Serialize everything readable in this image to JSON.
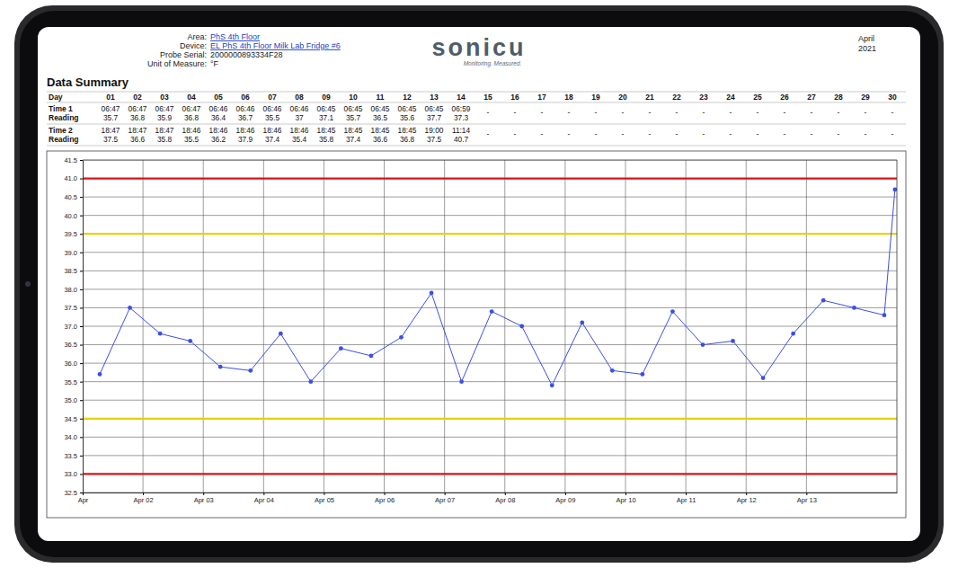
{
  "header": {
    "fields": [
      {
        "label": "Area:",
        "value": "PhS 4th Floor"
      },
      {
        "label": "Device:",
        "value": "EL PhS 4th Floor Milk Lab Fridge #6"
      },
      {
        "label": "Probe Serial:",
        "value": "2000000893334F28"
      },
      {
        "label": "Unit of Measure:",
        "value": "°F"
      }
    ],
    "logo": "sonicu",
    "tagline": "Monitoring. Measured.",
    "month": "April",
    "year": "2021"
  },
  "table": {
    "title": "Data Summary",
    "row_labels": [
      "Day",
      "Time 1 Reading",
      "Time 2 Reading"
    ],
    "days": [
      "01",
      "02",
      "03",
      "04",
      "05",
      "06",
      "07",
      "08",
      "09",
      "10",
      "11",
      "12",
      "13",
      "14",
      "15",
      "16",
      "17",
      "18",
      "19",
      "20",
      "21",
      "22",
      "23",
      "24",
      "25",
      "26",
      "27",
      "28",
      "29",
      "30"
    ],
    "time1": [
      {
        "time": "06:47",
        "reading": 35.7
      },
      {
        "time": "06:47",
        "reading": 36.8
      },
      {
        "time": "06:47",
        "reading": 35.9
      },
      {
        "time": "06:47",
        "reading": 36.8
      },
      {
        "time": "06:46",
        "reading": 36.4
      },
      {
        "time": "06:46",
        "reading": 36.7
      },
      {
        "time": "06:46",
        "reading": 35.5
      },
      {
        "time": "06:46",
        "reading": 37
      },
      {
        "time": "06:45",
        "reading": 37.1
      },
      {
        "time": "06:45",
        "reading": 35.7
      },
      {
        "time": "06:45",
        "reading": 36.5
      },
      {
        "time": "06:45",
        "reading": 35.6
      },
      {
        "time": "06:45",
        "reading": 37.7
      },
      {
        "time": "06:59",
        "reading": 37.3
      },
      "-",
      "-",
      "-",
      "-",
      "-",
      "-",
      "-",
      "-",
      "-",
      "-",
      "-",
      "-",
      "-",
      "-",
      "-",
      "-"
    ],
    "time2": [
      {
        "time": "18:47",
        "reading": 37.5
      },
      {
        "time": "18:47",
        "reading": 36.6
      },
      {
        "time": "18:47",
        "reading": 35.8
      },
      {
        "time": "18:46",
        "reading": 35.5
      },
      {
        "time": "18:46",
        "reading": 36.2
      },
      {
        "time": "18:46",
        "reading": 37.9
      },
      {
        "time": "18:46",
        "reading": 37.4
      },
      {
        "time": "18:46",
        "reading": 35.4
      },
      {
        "time": "18:45",
        "reading": 35.8
      },
      {
        "time": "18:45",
        "reading": 37.4
      },
      {
        "time": "18:45",
        "reading": 36.6
      },
      {
        "time": "18:45",
        "reading": 36.8
      },
      {
        "time": "19:00",
        "reading": 37.5
      },
      {
        "time": "11:14",
        "reading": 40.7
      },
      "-",
      "-",
      "-",
      "-",
      "-",
      "-",
      "-",
      "-",
      "-",
      "-",
      "-",
      "-",
      "-",
      "-",
      "-",
      "-"
    ]
  },
  "chart_data": {
    "type": "line",
    "x": [
      1.283,
      1.783,
      2.283,
      2.783,
      3.283,
      3.783,
      4.283,
      4.782,
      5.282,
      5.782,
      6.282,
      6.782,
      7.282,
      7.782,
      8.282,
      8.782,
      9.281,
      9.781,
      10.281,
      10.781,
      11.281,
      11.781,
      12.281,
      12.781,
      13.281,
      13.792,
      14.291,
      14.468
    ],
    "values": [
      35.7,
      37.5,
      36.8,
      36.6,
      35.9,
      35.8,
      36.8,
      35.5,
      36.4,
      36.2,
      36.7,
      37.9,
      35.5,
      37.4,
      37,
      35.4,
      37.1,
      35.8,
      35.7,
      37.4,
      36.5,
      36.6,
      35.6,
      36.8,
      37.7,
      37.5,
      37.3,
      40.7
    ],
    "color": "#3b4fe4",
    "marker": "circle",
    "grid": true,
    "xlim": [
      1,
      14.5
    ],
    "xticks": [
      {
        "value": 1,
        "label": "Apr"
      },
      {
        "value": 2,
        "label": "Apr 02"
      },
      {
        "value": 3,
        "label": "Apr 03"
      },
      {
        "value": 4,
        "label": "Apr 04"
      },
      {
        "value": 5,
        "label": "Apr 05"
      },
      {
        "value": 6,
        "label": "Apr 06"
      },
      {
        "value": 7,
        "label": "Apr 07"
      },
      {
        "value": 8,
        "label": "Apr 08"
      },
      {
        "value": 9,
        "label": "Apr 09"
      },
      {
        "value": 10,
        "label": "Apr 10"
      },
      {
        "value": 11,
        "label": "Apr 11"
      },
      {
        "value": 12,
        "label": "Apr 12"
      },
      {
        "value": 13,
        "label": "Apr 13"
      }
    ],
    "ylim": [
      32.5,
      41.5
    ],
    "yticks": [
      32.5,
      {
        "value": 33,
        "label": "33.0"
      },
      33.5,
      {
        "value": 34,
        "label": "34.0"
      },
      34.5,
      {
        "value": 35,
        "label": "35.0"
      },
      35.5,
      {
        "value": 36,
        "label": "36.0"
      },
      36.5,
      {
        "value": 37,
        "label": "37.0"
      },
      37.5,
      {
        "value": 38,
        "label": "38.0"
      },
      38.5,
      {
        "value": 39,
        "label": "39.0"
      },
      39.5,
      {
        "value": 40,
        "label": "40.0"
      },
      40.5,
      {
        "value": 41,
        "label": "41.0"
      },
      41.5
    ],
    "limit_lines": [
      {
        "value": 41,
        "color": "#d4141b"
      },
      {
        "value": 39.5,
        "color": "#e2d400"
      },
      {
        "value": 34.5,
        "color": "#e2d400"
      },
      {
        "value": 33,
        "color": "#d4141b"
      }
    ]
  }
}
